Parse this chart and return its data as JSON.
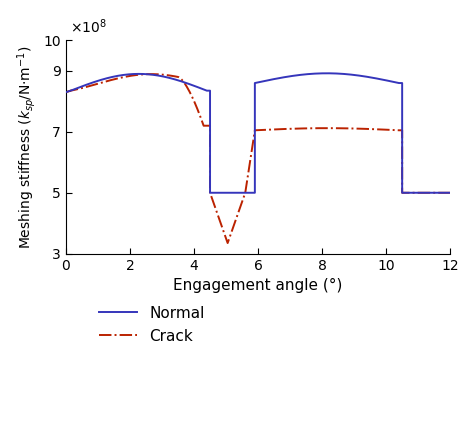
{
  "xlabel": "Engagement angle (°)",
  "ylabel": "Meshing stiffness ($k_{sp}$/N·m$^{-1}$)",
  "xlim": [
    0,
    12
  ],
  "ylim": [
    3,
    10
  ],
  "yticks": [
    3,
    5,
    7,
    9,
    10
  ],
  "xticks": [
    0,
    2,
    4,
    6,
    8,
    10,
    12
  ],
  "normal_color": "#3535bb",
  "crack_color": "#bb2200",
  "normal_label": "Normal",
  "crack_label": "Crack"
}
